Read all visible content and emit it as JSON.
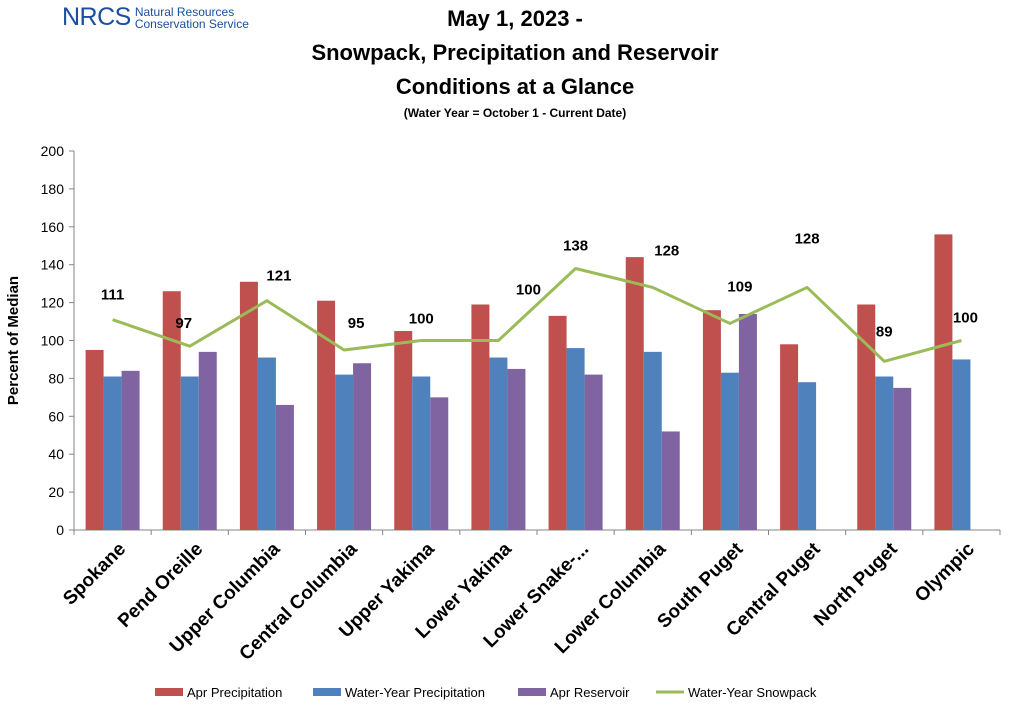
{
  "logo": {
    "mark": "NRCS",
    "line1": "Natural Resources",
    "line2": "Conservation Service"
  },
  "title": {
    "line1": "May 1, 2023 -",
    "line2": "Snowpack, Precipitation and Reservoir",
    "line3": "Conditions at a Glance",
    "subtitle": "(Water Year = October 1 - Current Date)"
  },
  "chart_data": {
    "type": "bar",
    "ylabel": "Percent of Median",
    "ylim": [
      0,
      200
    ],
    "yticks": [
      0,
      20,
      40,
      60,
      80,
      100,
      120,
      140,
      160,
      180,
      200
    ],
    "grid": false,
    "legend_position": "bottom",
    "categories": [
      "Spokane",
      "Pend Oreille",
      "Upper Columbia",
      "Central Columbia",
      "Upper Yakima",
      "Lower Yakima",
      "Lower Snake-...",
      "Lower Columbia",
      "South Puget",
      "Central Puget",
      "North Puget",
      "Olympic"
    ],
    "series": [
      {
        "name": "Apr Precipitation",
        "type": "bar",
        "color": "#c0504d",
        "values": [
          95,
          126,
          131,
          121,
          105,
          119,
          113,
          144,
          116,
          98,
          119,
          156
        ]
      },
      {
        "name": "Water-Year Precipitation",
        "type": "bar",
        "color": "#4f81bd",
        "values": [
          81,
          81,
          91,
          82,
          81,
          91,
          96,
          94,
          83,
          78,
          81,
          90
        ]
      },
      {
        "name": "Apr Reservoir",
        "type": "bar",
        "color": "#8064a2",
        "values": [
          84,
          94,
          66,
          88,
          70,
          85,
          82,
          52,
          114,
          null,
          75,
          null
        ]
      },
      {
        "name": "Water-Year Snowpack",
        "type": "line",
        "color": "#9bbb59",
        "values": [
          111,
          97,
          121,
          95,
          100,
          100,
          138,
          128,
          109,
          128,
          89,
          100
        ],
        "labels": [
          "111",
          "97",
          "121",
          "95",
          "100",
          "100",
          "138",
          "128",
          "109",
          "128",
          "89",
          "100"
        ]
      }
    ]
  }
}
